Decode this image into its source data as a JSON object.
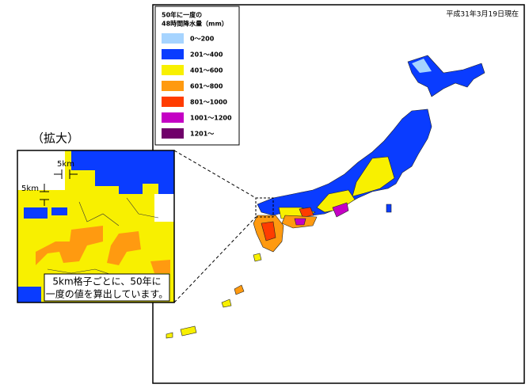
{
  "date": "平成31年3月19日現在",
  "legend": {
    "title": [
      "50年に一度の",
      "48時間降水量（mm）"
    ],
    "items": [
      {
        "label": "0～200",
        "color": "#a6d4ff"
      },
      {
        "label": "201～400",
        "color": "#0a3cff"
      },
      {
        "label": "401～600",
        "color": "#f8f000"
      },
      {
        "label": "601～800",
        "color": "#ff9a10"
      },
      {
        "label": "801～1000",
        "color": "#ff3c00"
      },
      {
        "label": "1001～1200",
        "color": "#c400c4"
      },
      {
        "label": "1201～",
        "color": "#70006a"
      }
    ]
  },
  "inset": {
    "title": "（拡大）",
    "scale_x": "5km",
    "scale_y": "5km",
    "caption": [
      "5km格子ごとに、50年に",
      "一度の値を算出しています。"
    ]
  }
}
